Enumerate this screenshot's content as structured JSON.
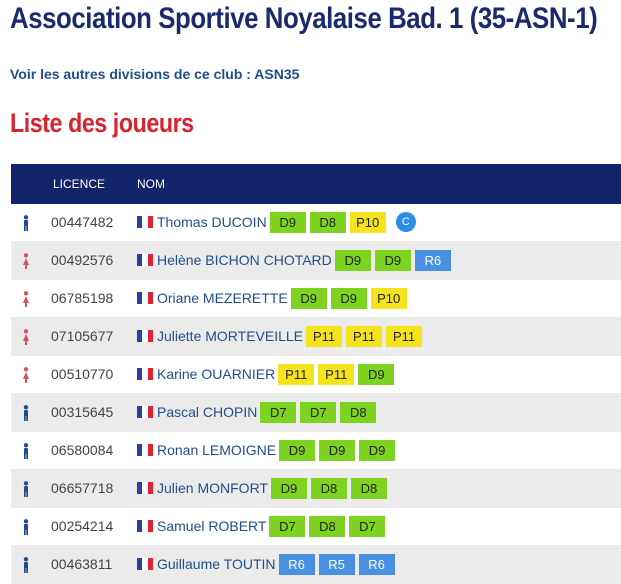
{
  "page": {
    "title": "Association Sportive Noyalaise Bad. 1 (35-ASN-1)",
    "club_link": "Voir les autres divisions de ce club : ASN35",
    "section_title": "Liste des joueurs"
  },
  "colors": {
    "title": "#1a2a6e",
    "section_title": "#d9232e",
    "header_bg": "#12246b",
    "male_icon": "#1f4e8c",
    "female_icon": "#d9535a",
    "rank_D": "#7ed321",
    "rank_P": "#f5e31e",
    "rank_R": "#4a90e2"
  },
  "table": {
    "columns": {
      "licence": "LICENCE",
      "name": "NOM"
    },
    "players": [
      {
        "gender": "male",
        "licence": "00447482",
        "name": "Thomas DUCOIN",
        "ranks": [
          "D9",
          "D8",
          "P10"
        ],
        "captain": "C"
      },
      {
        "gender": "female",
        "licence": "00492576",
        "name": "Helène BICHON CHOTARD",
        "ranks": [
          "D9",
          "D9",
          "R6"
        ]
      },
      {
        "gender": "female",
        "licence": "06785198",
        "name": "Oriane MEZERETTE",
        "ranks": [
          "D9",
          "D9",
          "P10"
        ]
      },
      {
        "gender": "female",
        "licence": "07105677",
        "name": "Juliette MORTEVEILLE",
        "ranks": [
          "P11",
          "P11",
          "P11"
        ]
      },
      {
        "gender": "female",
        "licence": "00510770",
        "name": "Karine OUARNIER",
        "ranks": [
          "P11",
          "P11",
          "D9"
        ]
      },
      {
        "gender": "male",
        "licence": "00315645",
        "name": "Pascal CHOPIN",
        "ranks": [
          "D7",
          "D7",
          "D8"
        ]
      },
      {
        "gender": "male",
        "licence": "06580084",
        "name": "Ronan LEMOIGNE",
        "ranks": [
          "D9",
          "D9",
          "D9"
        ]
      },
      {
        "gender": "male",
        "licence": "06657718",
        "name": "Julien MONFORT",
        "ranks": [
          "D9",
          "D8",
          "D8"
        ]
      },
      {
        "gender": "male",
        "licence": "00254214",
        "name": "Samuel ROBERT",
        "ranks": [
          "D7",
          "D8",
          "D7"
        ]
      },
      {
        "gender": "male",
        "licence": "00463811",
        "name": "Guillaume TOUTIN",
        "ranks": [
          "R6",
          "R5",
          "R6"
        ]
      }
    ]
  }
}
